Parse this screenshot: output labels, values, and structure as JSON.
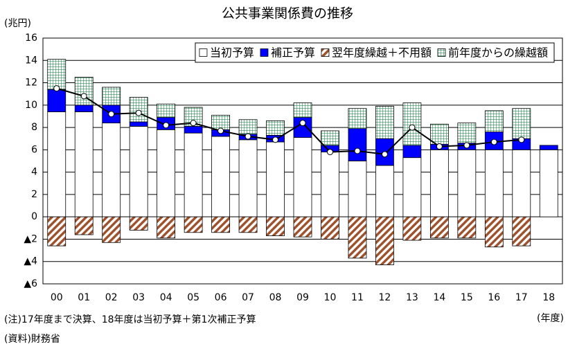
{
  "chart_data": {
    "type": "bar",
    "stacked": true,
    "title": "公共事業関係費の推移",
    "y_label": "(兆円)",
    "x_label": "(年度)",
    "notes": [
      "(注)17年度まで決算、18年度は当初予算＋第1次補正予算",
      "(資料)財務省"
    ],
    "categories": [
      "00",
      "01",
      "02",
      "03",
      "04",
      "05",
      "06",
      "07",
      "08",
      "09",
      "10",
      "11",
      "12",
      "13",
      "14",
      "15",
      "16",
      "17",
      "18"
    ],
    "series": [
      {
        "name": "当初予算",
        "color": "#ffffff",
        "pattern": "solid",
        "values": [
          9.4,
          9.4,
          8.4,
          8.1,
          7.8,
          7.5,
          7.2,
          6.9,
          6.7,
          7.1,
          5.8,
          5.0,
          4.6,
          5.3,
          6.0,
          6.0,
          6.0,
          6.0,
          6.0
        ]
      },
      {
        "name": "補正予算",
        "color": "#0000ff",
        "pattern": "solid",
        "values": [
          2.0,
          0.6,
          1.6,
          0.4,
          1.1,
          0.6,
          0.6,
          0.5,
          0.6,
          1.8,
          0.6,
          2.9,
          2.4,
          1.1,
          0.5,
          0.6,
          1.6,
          1.0,
          0.4
        ]
      },
      {
        "name": "翌年度繰越＋不用額",
        "color": "#a0522d",
        "pattern": "hatch",
        "values": [
          -2.6,
          -1.6,
          -2.3,
          -1.2,
          -1.9,
          -1.4,
          -1.4,
          -1.4,
          -1.7,
          -1.8,
          -2.0,
          -3.7,
          -4.3,
          -2.1,
          -1.9,
          -1.9,
          -2.7,
          -2.6,
          null
        ]
      },
      {
        "name": "前年度からの繰越額",
        "color": "#2e8b57",
        "pattern": "grid",
        "values": [
          2.7,
          2.5,
          1.6,
          2.2,
          1.2,
          1.7,
          1.3,
          1.3,
          1.3,
          1.3,
          1.3,
          1.8,
          2.9,
          3.8,
          1.8,
          1.8,
          1.9,
          2.7,
          null
        ]
      },
      {
        "type": "line",
        "color": "#000000",
        "values": [
          11.5,
          10.8,
          9.2,
          9.3,
          8.2,
          8.4,
          7.7,
          7.2,
          6.9,
          8.4,
          5.8,
          5.9,
          5.6,
          8.0,
          6.3,
          6.4,
          6.7,
          6.9,
          null
        ]
      }
    ],
    "ylim": [
      -6,
      16
    ],
    "yticks": [
      {
        "value": -6,
        "label": "▲6"
      },
      {
        "value": -4,
        "label": "▲4"
      },
      {
        "value": -2,
        "label": "▲2"
      },
      0,
      2,
      4,
      6,
      8,
      10,
      12,
      14,
      16
    ],
    "grid": true,
    "legend": "upper right"
  }
}
